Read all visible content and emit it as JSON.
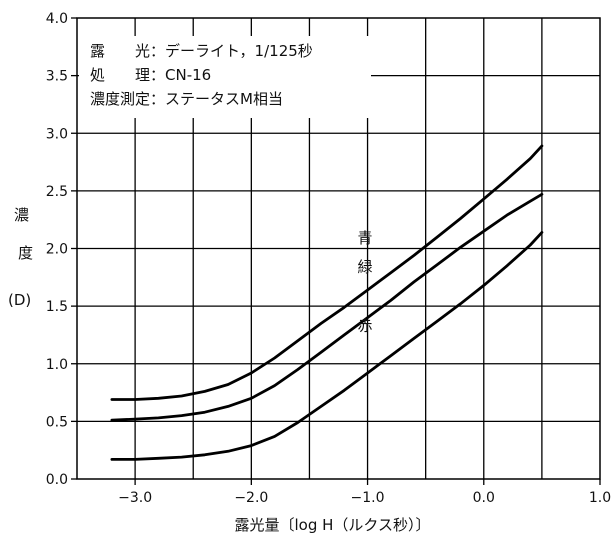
{
  "chart_data": {
    "type": "line",
    "title": "",
    "xlabel": "露光量〔log H（ルクス秒）〕",
    "ylabel": [
      "濃",
      "度",
      "(D)"
    ],
    "xlim": [
      -3.5,
      1.0
    ],
    "ylim": [
      0.0,
      4.0
    ],
    "x_ticks": [
      -3.0,
      -2.0,
      -1.0,
      0.0,
      1.0
    ],
    "x_tick_labels": [
      "−3.0",
      "−2.0",
      "−1.0",
      "0.0",
      "1.0"
    ],
    "y_ticks": [
      0.0,
      0.5,
      1.0,
      1.5,
      2.0,
      2.5,
      3.0,
      3.5,
      4.0
    ],
    "y_tick_labels": [
      "0.0",
      "0.5",
      "1.0",
      "1.5",
      "2.0",
      "2.5",
      "3.0",
      "3.5",
      "4.0"
    ],
    "x_grid_lines": [
      -3.0,
      -2.5,
      -2.0,
      -1.5,
      -1.0,
      -0.5,
      0.0,
      0.5
    ],
    "y_grid_lines": [
      0.5,
      1.0,
      1.5,
      2.0,
      2.5,
      3.0,
      3.5
    ],
    "info_lines": [
      "露　　光：デーライト，1/125秒",
      "処　　理：CN-16",
      "濃度測定：ステータスM相当"
    ],
    "series": [
      {
        "name": "青",
        "label_at": [
          -1.0,
          2.1
        ],
        "x": [
          -3.2,
          -3.0,
          -2.8,
          -2.6,
          -2.4,
          -2.2,
          -2.0,
          -1.8,
          -1.6,
          -1.4,
          -1.2,
          -1.0,
          -0.8,
          -0.6,
          -0.4,
          -0.2,
          0.0,
          0.2,
          0.4,
          0.5
        ],
        "values": [
          0.69,
          0.69,
          0.7,
          0.72,
          0.76,
          0.82,
          0.92,
          1.05,
          1.2,
          1.35,
          1.49,
          1.64,
          1.79,
          1.94,
          2.1,
          2.26,
          2.43,
          2.6,
          2.78,
          2.89
        ]
      },
      {
        "name": "緑",
        "label_at": [
          -1.0,
          1.85
        ],
        "x": [
          -3.2,
          -3.0,
          -2.8,
          -2.6,
          -2.4,
          -2.2,
          -2.0,
          -1.8,
          -1.6,
          -1.4,
          -1.2,
          -1.0,
          -0.8,
          -0.6,
          -0.4,
          -0.2,
          0.0,
          0.2,
          0.4,
          0.5
        ],
        "values": [
          0.51,
          0.52,
          0.53,
          0.55,
          0.58,
          0.63,
          0.7,
          0.81,
          0.95,
          1.1,
          1.25,
          1.4,
          1.55,
          1.71,
          1.86,
          2.01,
          2.15,
          2.29,
          2.41,
          2.47
        ]
      },
      {
        "name": "赤",
        "label_at": [
          -1.0,
          1.34
        ],
        "x": [
          -3.2,
          -3.0,
          -2.8,
          -2.6,
          -2.4,
          -2.2,
          -2.0,
          -1.8,
          -1.6,
          -1.4,
          -1.2,
          -1.0,
          -0.8,
          -0.6,
          -0.4,
          -0.2,
          0.0,
          0.2,
          0.4,
          0.5
        ],
        "values": [
          0.17,
          0.17,
          0.18,
          0.19,
          0.21,
          0.24,
          0.29,
          0.37,
          0.49,
          0.63,
          0.77,
          0.92,
          1.07,
          1.22,
          1.37,
          1.52,
          1.68,
          1.85,
          2.03,
          2.14
        ]
      }
    ],
    "grid": true,
    "legend": "none"
  }
}
